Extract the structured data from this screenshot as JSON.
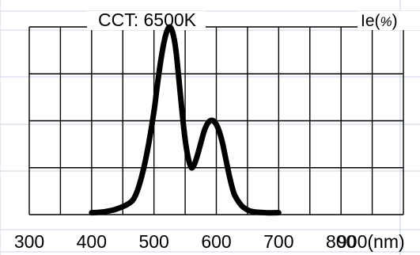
{
  "chart_data": {
    "type": "line",
    "title": "CCT: 6500K",
    "xlabel": "",
    "ylabel": "",
    "x_unit_label": "(nm)",
    "y_unit_label": {
      "prefix": "Ie(",
      "symbol": "%",
      "suffix": ")"
    },
    "x_ticks": [
      300,
      400,
      500,
      600,
      700,
      800,
      900
    ],
    "x_tick_labels": [
      "300",
      "400",
      "500",
      "600",
      "700",
      "800",
      "900(nm)"
    ],
    "xlim": [
      300,
      900
    ],
    "ylim": [
      0,
      100
    ],
    "grid": true,
    "series": [
      {
        "x": [
          400,
          420,
          440,
          460,
          470,
          480,
          490,
          500,
          505,
          510,
          515,
          520,
          525,
          530,
          535,
          540,
          545,
          550,
          555,
          560,
          565,
          570,
          575,
          580,
          585,
          590,
          595,
          600,
          605,
          610,
          615,
          620,
          625,
          630,
          640,
          650,
          660,
          680,
          700
        ],
        "y": [
          1,
          1.5,
          3,
          6,
          10,
          20,
          35,
          55,
          68,
          80,
          90,
          97,
          100,
          97,
          88,
          72,
          55,
          40,
          30,
          25,
          27,
          32,
          38,
          44,
          48,
          50,
          50,
          48,
          44,
          38,
          30,
          22,
          15,
          10,
          5,
          2.5,
          1.5,
          1,
          1
        ],
        "color": "#000000"
      }
    ]
  }
}
